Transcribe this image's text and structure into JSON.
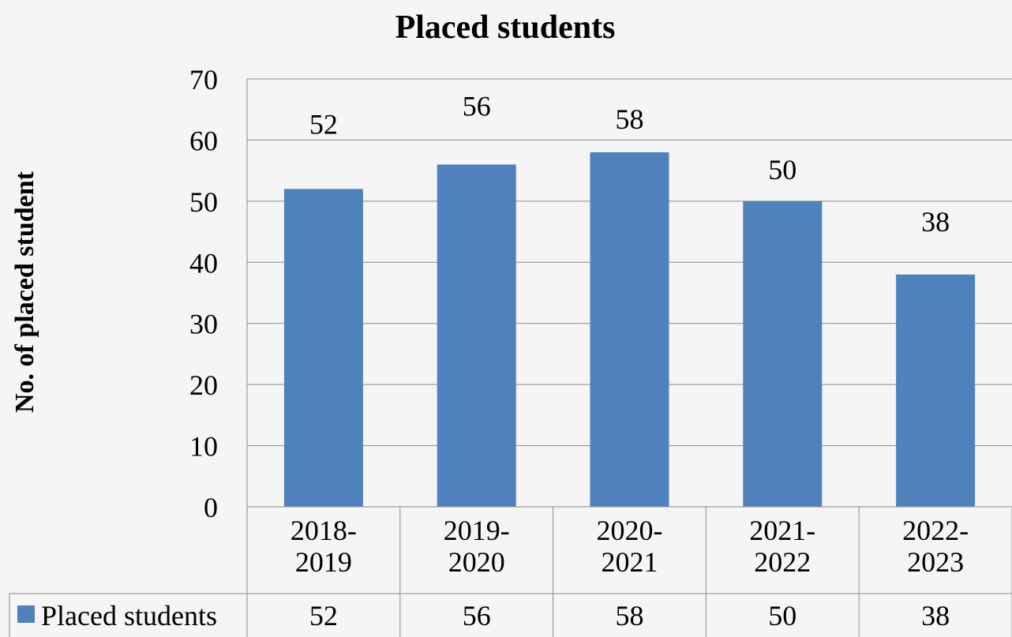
{
  "chart_data": {
    "type": "bar",
    "title": "Placed students",
    "ylabel": "No. of placed student",
    "xlabel": "",
    "categories": [
      "2018-\n2019",
      "2019-\n2020",
      "2020-\n2021",
      "2021-\n2022",
      "2022-\n2023"
    ],
    "series": [
      {
        "name": "Placed students",
        "values": [
          52,
          56,
          58,
          50,
          38
        ],
        "color": "#4f81bd"
      }
    ],
    "ylim": [
      0,
      70
    ],
    "yticks": [
      0,
      10,
      20,
      30,
      40,
      50,
      60,
      70
    ],
    "grid": true,
    "data_table": true,
    "legend": "data-table-left"
  }
}
